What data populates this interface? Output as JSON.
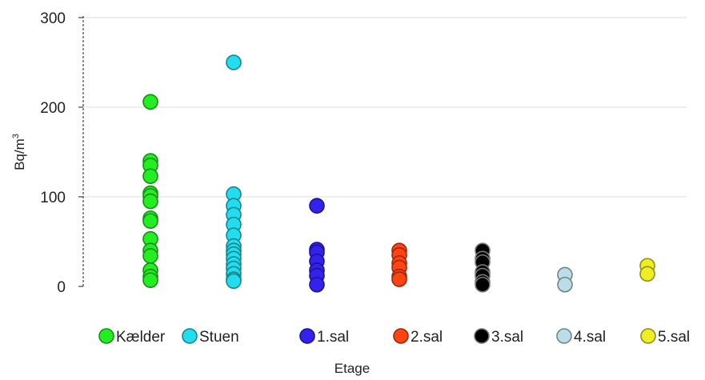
{
  "chart_data": {
    "type": "scatter",
    "title": "",
    "xlabel": "Etage",
    "ylabel_main": "Bq/m",
    "ylabel_sup": "3",
    "ylim": [
      0,
      300
    ],
    "yticks": [
      0,
      100,
      200,
      300
    ],
    "grid": true,
    "legend_position": "bottom",
    "categories": [
      "Kælder",
      "Stuen",
      "1.sal",
      "2.sal",
      "3.sal",
      "4.sal",
      "5.sal"
    ],
    "series": [
      {
        "name": "Kælder",
        "color": "#22EE22",
        "values": [
          206,
          140,
          135,
          123,
          104,
          101,
          95,
          76,
          73,
          53,
          40,
          34,
          18,
          11,
          7
        ]
      },
      {
        "name": "Stuen",
        "color": "#22DDEE",
        "values": [
          250,
          103,
          90,
          80,
          69,
          57,
          45,
          40,
          36,
          31,
          25,
          20,
          14,
          8,
          6
        ]
      },
      {
        "name": "1.sal",
        "color": "#3322EE",
        "values": [
          90,
          41,
          38,
          28,
          18,
          12,
          2
        ]
      },
      {
        "name": "2.sal",
        "color": "#FF4411",
        "values": [
          40,
          35,
          26,
          21,
          11,
          8
        ]
      },
      {
        "name": "3.sal",
        "color": "#000000",
        "values": [
          40,
          31,
          27,
          16,
          12,
          5,
          2
        ]
      },
      {
        "name": "4.sal",
        "color": "#BBDDE6",
        "values": [
          13,
          2
        ]
      },
      {
        "name": "5.sal",
        "color": "#EEEE22",
        "values": [
          23,
          14
        ]
      }
    ]
  }
}
